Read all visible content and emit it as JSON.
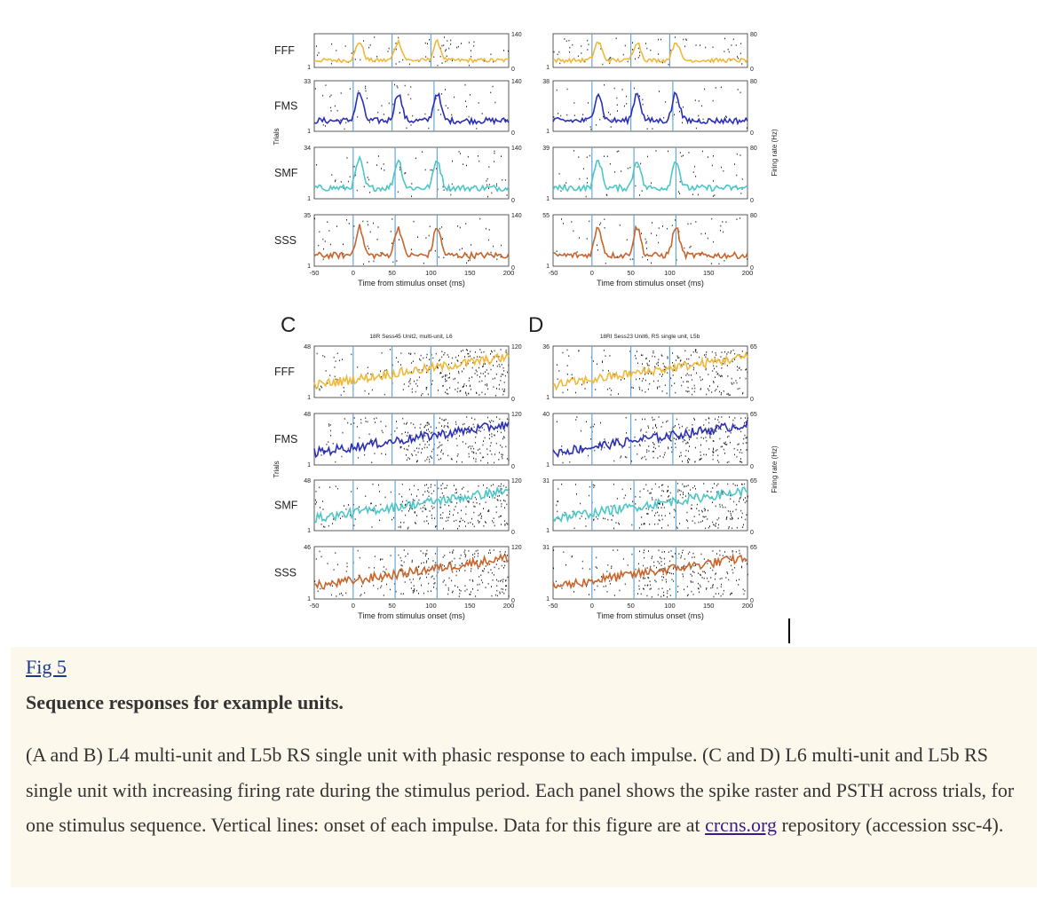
{
  "figure": {
    "panel_c_label": "C",
    "panel_d_label": "D",
    "panel_c_title": "18R Sess45 Unit2, multi-unit, L6",
    "panel_d_title": "18RI Sess23 Unit6, RS single unit, L5b",
    "conditions": [
      "FFF",
      "FMS",
      "SMF",
      "SSS"
    ],
    "ylabel_left": "Trials",
    "ylabel_right": "Firing rate (Hz)",
    "xlabel": "Time from stimulus onset (ms)",
    "x_ticks": [
      "-50",
      "0",
      "50",
      "100",
      "150",
      "200"
    ],
    "colors": {
      "FFF": "#f0b93c",
      "FMS": "#2b2fb5",
      "SMF": "#4cc7c7",
      "SSS": "#c9642a",
      "onset": "#6aa6d8"
    },
    "panels": {
      "A": {
        "trial_max": [
          "",
          "33",
          "34",
          "35"
        ],
        "rate_max": [
          "140",
          "140",
          "140",
          "140"
        ],
        "onsets": [
          0,
          50,
          100
        ]
      },
      "B": {
        "trial_max": [
          "",
          "38",
          "39",
          "55"
        ],
        "rate_max": [
          "80",
          "80",
          "80",
          "80"
        ],
        "onsets": [
          0,
          50,
          100
        ]
      },
      "C": {
        "trial_max": [
          "48",
          "48",
          "48",
          "46"
        ],
        "rate_max": [
          "120",
          "120",
          "120",
          "120"
        ],
        "onsets": [
          0,
          50,
          100
        ]
      },
      "D": {
        "trial_max": [
          "36",
          "40",
          "31",
          "31"
        ],
        "rate_max": [
          "65",
          "65",
          "65",
          "65"
        ],
        "onsets": [
          0,
          50,
          100
        ]
      },
      "trial_min": "1",
      "rate_min": "0"
    }
  },
  "caption": {
    "fig_link": "Fig 5",
    "title": "Sequence responses for example units.",
    "body_before_link": "(A and B) L4 multi-unit and L5b RS single unit with phasic response to each impulse. (C and D) L6 multi-unit and L5b RS single unit with increasing firing rate during the stimulus period. Each panel shows the spike raster and PSTH across trials, for one stimulus sequence. Vertical lines: onset of each impulse. Data for this figure are at ",
    "link_text": "crcns.org",
    "body_after_link": " repository (accession ssc-4)."
  }
}
